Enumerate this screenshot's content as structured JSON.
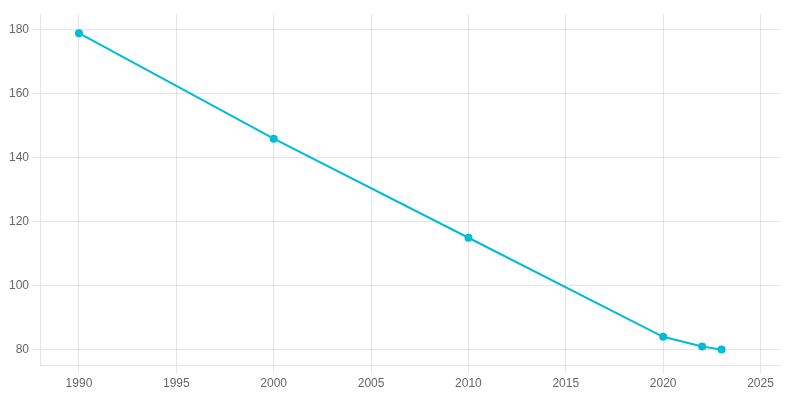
{
  "chart_data": {
    "type": "line",
    "x": [
      1990,
      2000,
      2010,
      2020,
      2022,
      2023
    ],
    "values": [
      179,
      146,
      115,
      84,
      81,
      80
    ],
    "color": "#00BCD4",
    "marker": "circle",
    "xlim": [
      1988,
      2026
    ],
    "xticks": [
      1990,
      1995,
      2000,
      2005,
      2010,
      2015,
      2020,
      2025
    ],
    "ylim": [
      75,
      185
    ],
    "yticks": [
      80,
      100,
      120,
      140,
      160,
      180
    ],
    "grid": true
  }
}
